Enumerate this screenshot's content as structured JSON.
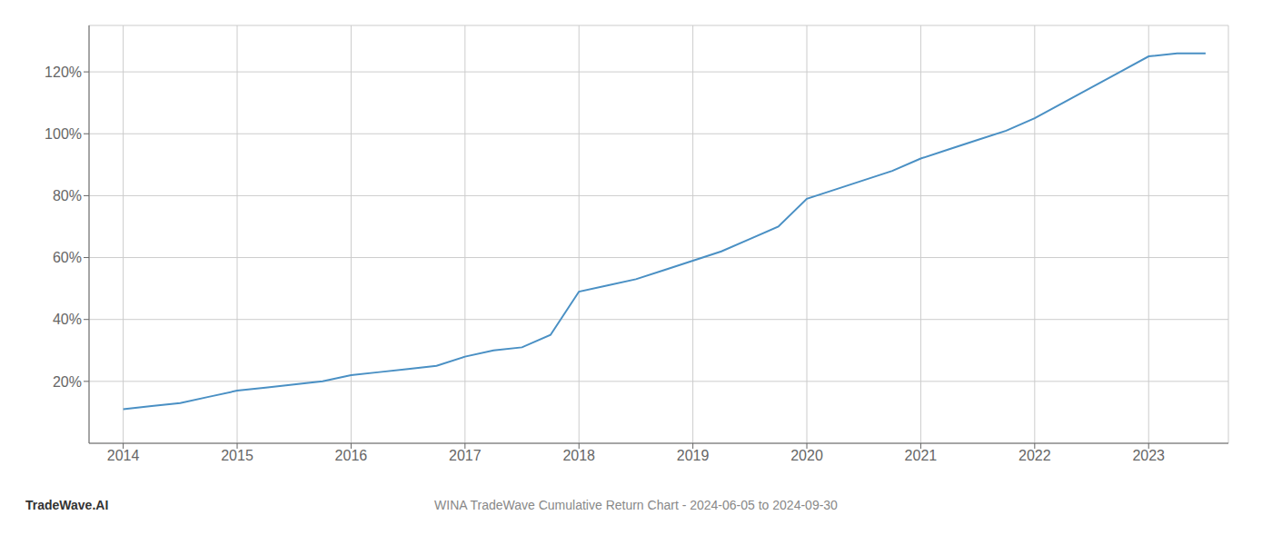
{
  "chart_data": {
    "type": "line",
    "title": "WINA TradeWave Cumulative Return Chart - 2024-06-05 to 2024-09-30",
    "annotations": [
      "TradeWave.AI"
    ],
    "x": [
      2014.0,
      2014.25,
      2014.5,
      2014.75,
      2015.0,
      2015.25,
      2015.5,
      2015.75,
      2016.0,
      2016.25,
      2016.5,
      2016.75,
      2017.0,
      2017.25,
      2017.5,
      2017.75,
      2018.0,
      2018.25,
      2018.5,
      2018.75,
      2019.0,
      2019.25,
      2019.5,
      2019.75,
      2020.0,
      2020.25,
      2020.5,
      2020.75,
      2021.0,
      2021.25,
      2021.5,
      2021.75,
      2022.0,
      2022.25,
      2022.5,
      2022.75,
      2023.0,
      2023.25,
      2023.5
    ],
    "values": [
      11,
      12,
      13,
      15,
      17,
      18,
      19,
      20,
      22,
      23,
      24,
      25,
      28,
      30,
      31,
      35,
      49,
      51,
      53,
      56,
      59,
      62,
      66,
      70,
      79,
      82,
      85,
      88,
      92,
      95,
      98,
      101,
      105,
      110,
      115,
      120,
      125,
      126,
      126
    ],
    "color": "#4a90c4",
    "xlim": [
      2013.7,
      2023.7
    ],
    "xticks": [
      2014,
      2015,
      2016,
      2017,
      2018,
      2019,
      2020,
      2021,
      2022,
      2023
    ],
    "ylim": [
      0,
      135
    ],
    "yticks": [
      {
        "value": 20,
        "label": "20%"
      },
      {
        "value": 40,
        "label": "40%"
      },
      {
        "value": 60,
        "label": "60%"
      },
      {
        "value": 80,
        "label": "80%"
      },
      {
        "value": 100,
        "label": "100%"
      },
      {
        "value": 120,
        "label": "120%"
      }
    ],
    "grid": true
  }
}
